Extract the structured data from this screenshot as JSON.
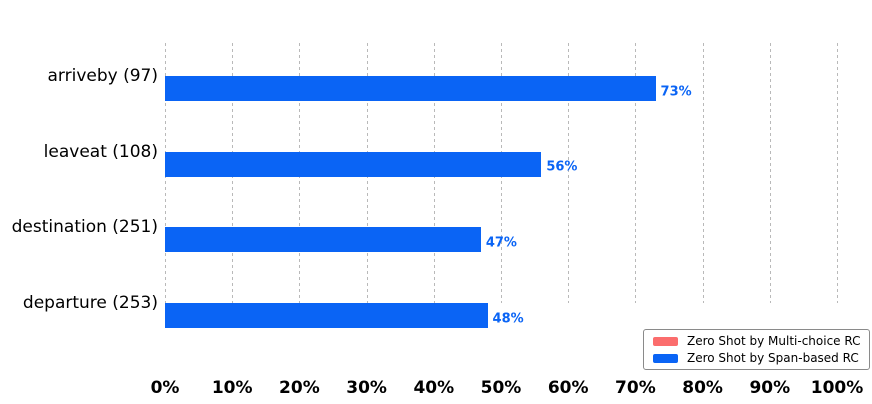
{
  "chart_data": {
    "type": "bar",
    "orientation": "horizontal",
    "title": "",
    "categories": [
      "arriveby (97)",
      "leaveat (108)",
      "destination (251)",
      "departure (253)"
    ],
    "series": [
      {
        "name": "Zero Shot by Span-based RC",
        "color": "#0a64f5",
        "values": [
          73,
          56,
          47,
          48
        ]
      }
    ],
    "value_labels": [
      "73%",
      "56%",
      "47%",
      "48%"
    ],
    "xticks": [
      "0%",
      "10%",
      "20%",
      "30%",
      "40%",
      "50%",
      "60%",
      "70%",
      "80%",
      "90%",
      "100%"
    ],
    "xlim": [
      0,
      100
    ],
    "grid": "vertical-dashed",
    "gridline_color": "#b9b9b9",
    "legend": {
      "position": "lower-right",
      "items": [
        {
          "label": "Zero Shot by Multi-choice RC",
          "color": "#fb6d6d"
        },
        {
          "label": "Zero Shot by Span-based RC",
          "color": "#0a64f5"
        }
      ]
    },
    "colors": {
      "bar": "#0a64f5",
      "value_label": "#0a64f5",
      "text": "#000000"
    }
  }
}
